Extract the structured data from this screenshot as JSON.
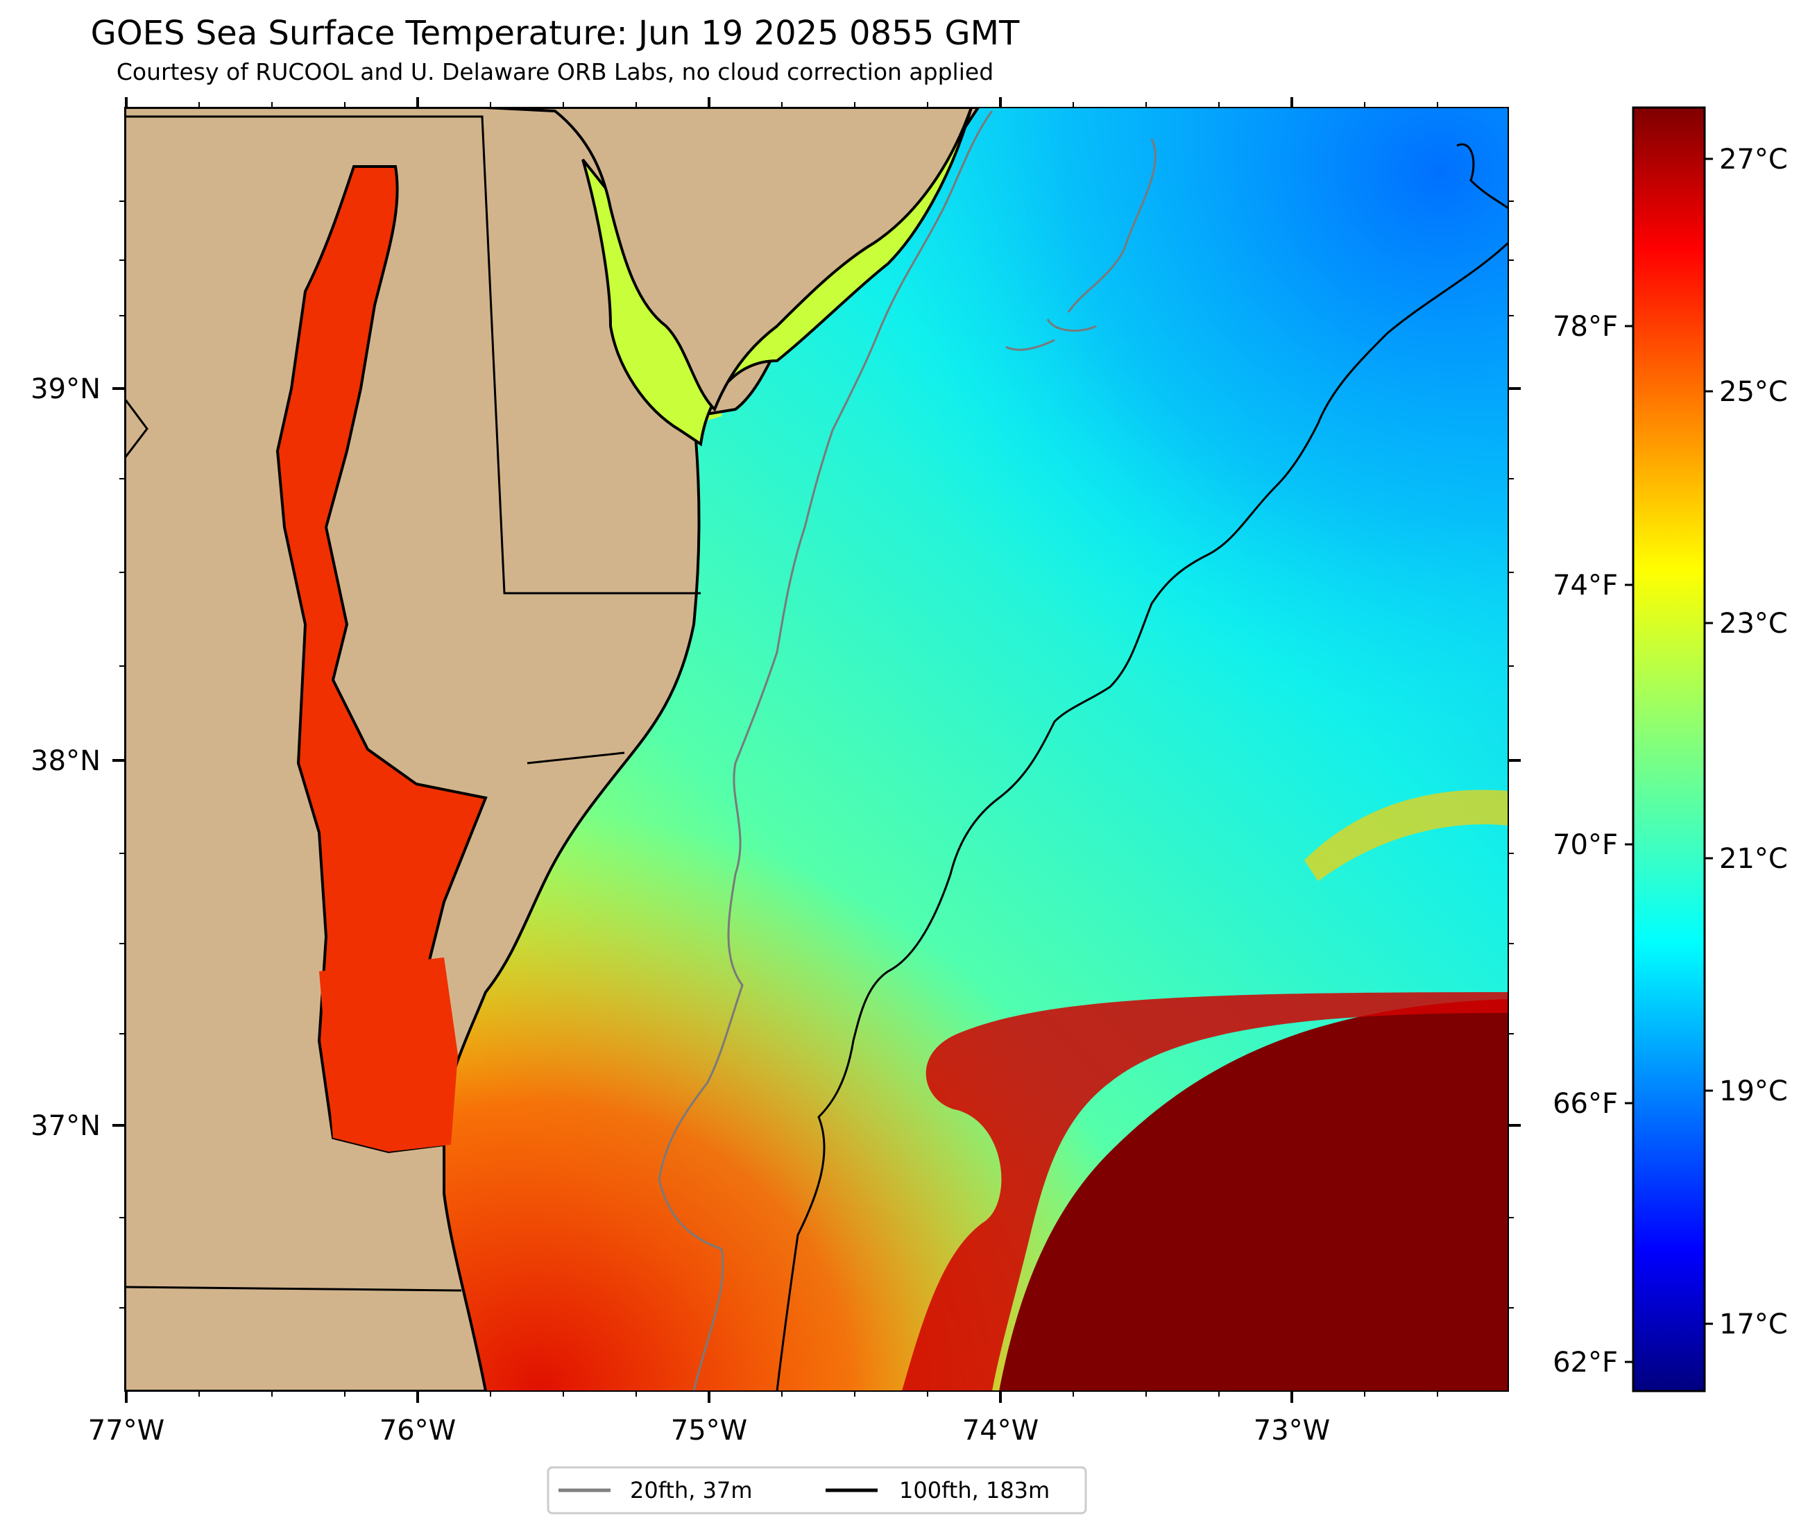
{
  "title": "GOES Sea Surface Temperature: Jun 19 2025 0855 GMT",
  "subtitle": "Courtesy of RUCOOL and U. Delaware ORB Labs, no cloud correction applied",
  "map": {
    "lon_range": [
      -77.0,
      -72.25
    ],
    "lat_range": [
      36.3,
      39.75
    ],
    "x_ticks": [
      "77°W",
      "76°W",
      "75°W",
      "74°W",
      "73°W"
    ],
    "y_ticks": [
      "39°N",
      "38°N",
      "37°N"
    ],
    "land_color": "#d2b48c",
    "layers": [
      "sea-surface-temperature",
      "land",
      "state-boundaries",
      "20fth-isobath",
      "100fth-isobath"
    ]
  },
  "colorbar": {
    "colormap": "jet",
    "celsius_labels": [
      "27°C",
      "25°C",
      "23°C",
      "21°C",
      "19°C",
      "17°C"
    ],
    "fahrenheit_labels": [
      "78°F",
      "74°F",
      "70°F",
      "66°F",
      "62°F"
    ]
  },
  "legend": {
    "items": [
      {
        "label": "20fth, 37m",
        "color": "#808080"
      },
      {
        "label": "100fth, 183m",
        "color": "#000000"
      }
    ]
  }
}
